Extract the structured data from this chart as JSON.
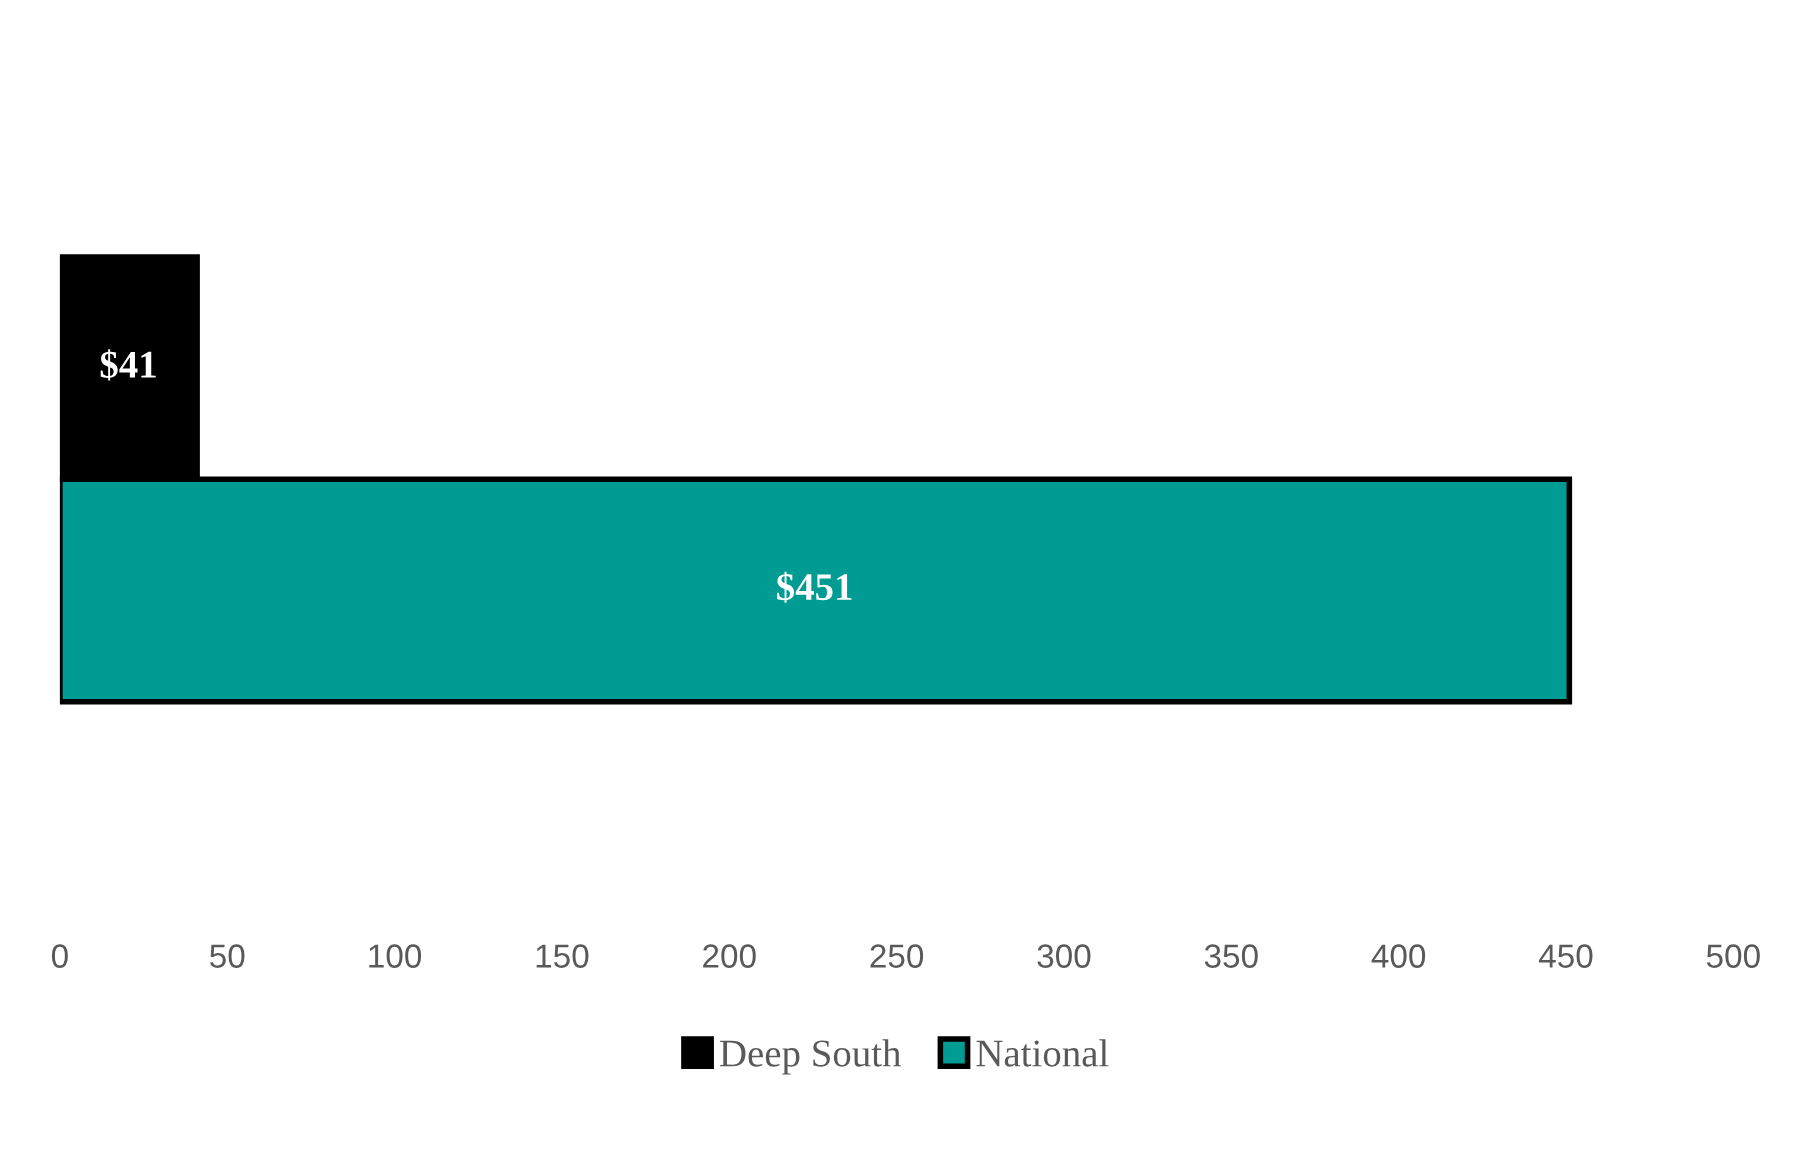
{
  "chart_data": {
    "type": "bar",
    "orientation": "horizontal",
    "categories": [
      null
    ],
    "series": [
      {
        "name": "Deep South",
        "color": "#000000",
        "values": [
          41
        ],
        "value_labels": [
          "$41"
        ]
      },
      {
        "name": "National",
        "color": "#009b93",
        "values": [
          451
        ],
        "value_labels": [
          "$451"
        ]
      }
    ],
    "xlim": [
      0,
      500
    ],
    "xticks": [
      0,
      50,
      100,
      150,
      200,
      250,
      300,
      350,
      400,
      450,
      500
    ],
    "grid": false,
    "legend": "bottom"
  }
}
